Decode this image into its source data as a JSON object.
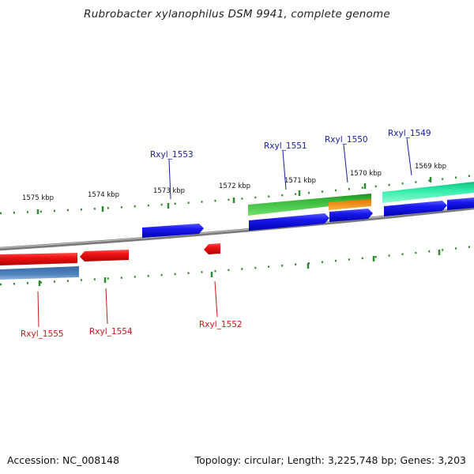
{
  "title": "Rubrobacter xylanophilus DSM 9941, complete genome",
  "ticks": [
    {
      "label": "1575 kbp"
    },
    {
      "label": "1574 kbp"
    },
    {
      "label": "1573 kbp"
    },
    {
      "label": "1572 kbp"
    },
    {
      "label": "1571 kbp"
    },
    {
      "label": "1570 kbp"
    },
    {
      "label": "1569 kbp"
    }
  ],
  "genes_top": [
    {
      "label": "Rxyl_1553"
    },
    {
      "label": "Rxyl_1551"
    },
    {
      "label": "Rxyl_1550"
    },
    {
      "label": "Rxyl_1549"
    }
  ],
  "genes_bottom": [
    {
      "label": "Rxyl_1555"
    },
    {
      "label": "Rxyl_1554"
    },
    {
      "label": "Rxyl_1552"
    }
  ],
  "colors": {
    "forward_gene": "#1010e0",
    "reverse_gene": "#e01010",
    "forward_label": "#1a1aa6",
    "reverse_label": "#c41a1a",
    "green_feature": "#33b233",
    "orange_feature": "#ff9a1a",
    "teal_feature": "#22dd99",
    "steel_feature": "#4a7ab0",
    "tick_mark": "#2f8a2f",
    "backbone": "#7a7a7a"
  },
  "footer": {
    "accession": "Accession: NC_008148",
    "summary": "Topology: circular; Length: 3,225,748 bp; Genes: 3,203"
  }
}
